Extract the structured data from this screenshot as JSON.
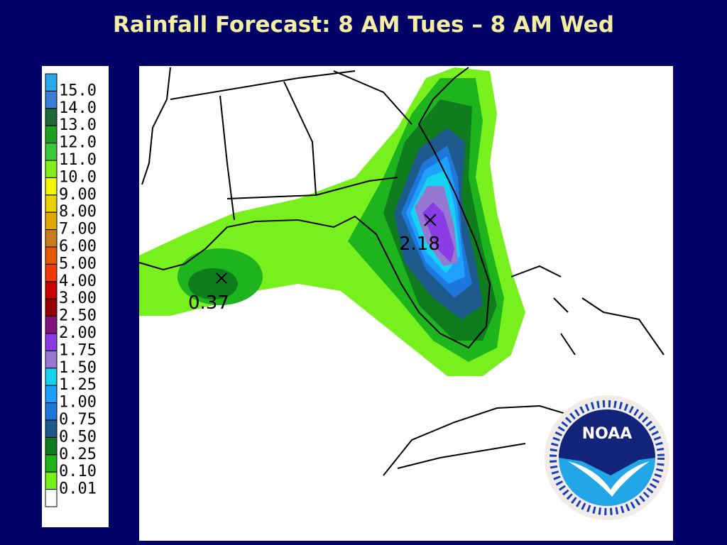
{
  "title": "Rainfall Forecast: 8 AM Tues – 8 AM Wed",
  "legend": {
    "labels": [
      "15.0",
      "14.0",
      "13.0",
      "12.0",
      "11.0",
      "10.0",
      "9.00",
      "8.00",
      "7.00",
      "6.00",
      "5.00",
      "4.00",
      "3.00",
      "2.50",
      "2.00",
      "1.75",
      "1.50",
      "1.25",
      "1.00",
      "0.75",
      "0.50",
      "0.25",
      "0.10",
      "0.01"
    ],
    "colors": [
      "#2aa8e8",
      "#3a7fd6",
      "#1e6a3a",
      "#1fa01f",
      "#3cc83c",
      "#82f01e",
      "#f5f500",
      "#e8d200",
      "#e0a800",
      "#c87c1e",
      "#e85a00",
      "#f03c00",
      "#c80000",
      "#960000",
      "#82147e",
      "#8c3ce6",
      "#9678d2",
      "#14d2f0",
      "#1ea0ff",
      "#1e78dc",
      "#1e5a8c",
      "#0f7d1e",
      "#1eb41e",
      "#78f01e",
      "#ffffff"
    ]
  },
  "annotations": [
    "2.18",
    "0.37"
  ],
  "logo": "NOAA"
}
